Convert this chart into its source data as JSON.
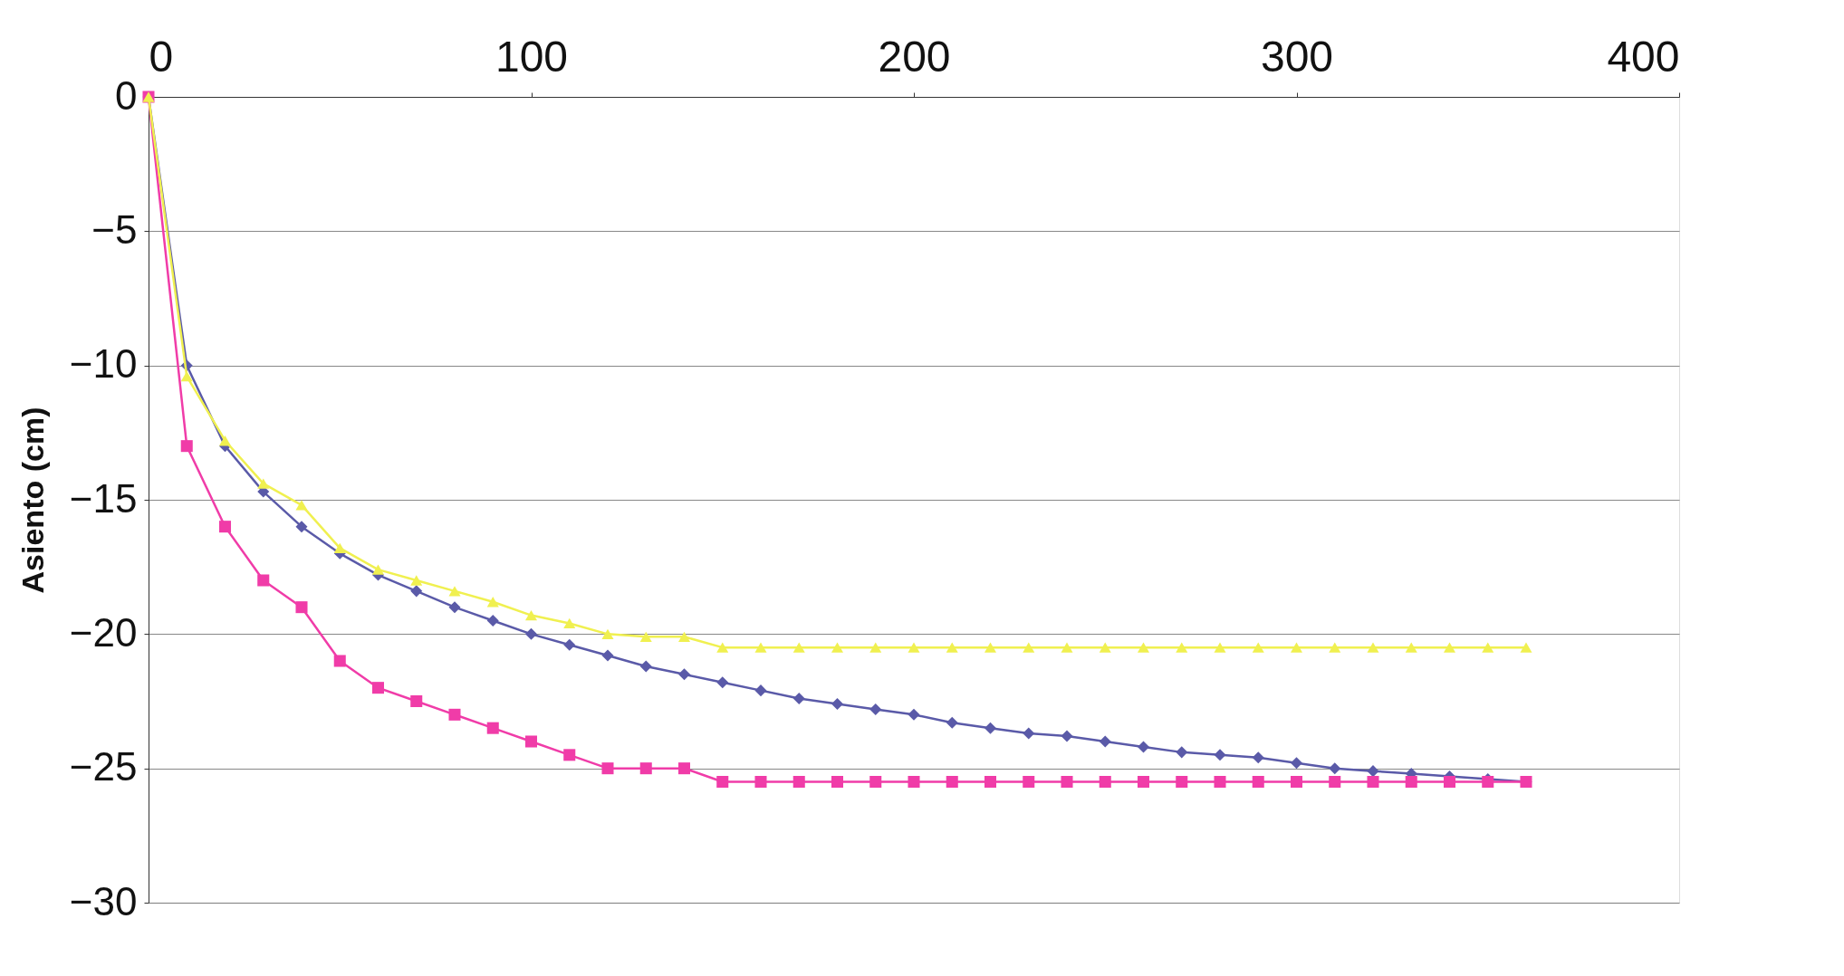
{
  "chart_data": {
    "type": "line",
    "ylabel": "Asiento (cm)",
    "x": [
      0,
      10,
      20,
      30,
      40,
      50,
      60,
      70,
      80,
      90,
      100,
      110,
      120,
      130,
      140,
      150,
      160,
      170,
      180,
      190,
      200,
      210,
      220,
      230,
      240,
      250,
      260,
      270,
      280,
      290,
      300,
      310,
      320,
      330,
      340,
      350,
      360
    ],
    "series": [
      {
        "color": "#5a5aa8",
        "marker": "diamond",
        "values": [
          0,
          -10,
          -13,
          -14.7,
          -16,
          -17,
          -17.8,
          -18.4,
          -19,
          -19.5,
          -20,
          -20.4,
          -20.8,
          -21.2,
          -21.5,
          -21.8,
          -22.1,
          -22.4,
          -22.6,
          -22.8,
          -23,
          -23.3,
          -23.5,
          -23.7,
          -23.8,
          -24,
          -24.2,
          -24.4,
          -24.5,
          -24.6,
          -24.8,
          -25,
          -25.1,
          -25.2,
          -25.3,
          -25.4,
          -25.5
        ]
      },
      {
        "color": "#f03ca8",
        "marker": "square",
        "values": [
          0,
          -13,
          -16,
          -18,
          -19,
          -21,
          -22,
          -22.5,
          -23,
          -23.5,
          -24,
          -24.5,
          -25,
          -25,
          -25,
          -25.5,
          -25.5,
          -25.5,
          -25.5,
          -25.5,
          -25.5,
          -25.5,
          -25.5,
          -25.5,
          -25.5,
          -25.5,
          -25.5,
          -25.5,
          -25.5,
          -25.5,
          -25.5,
          -25.5,
          -25.5,
          -25.5,
          -25.5,
          -25.5,
          -25.5
        ]
      },
      {
        "color": "#f0f050",
        "marker": "triangle",
        "values": [
          0,
          -10.4,
          -12.8,
          -14.4,
          -15.2,
          -16.8,
          -17.6,
          -18,
          -18.4,
          -18.8,
          -19.3,
          -19.6,
          -20,
          -20.1,
          -20.1,
          -20.5,
          -20.5,
          -20.5,
          -20.5,
          -20.5,
          -20.5,
          -20.5,
          -20.5,
          -20.5,
          -20.5,
          -20.5,
          -20.5,
          -20.5,
          -20.5,
          -20.5,
          -20.5,
          -20.5,
          -20.5,
          -20.5,
          -20.5,
          -20.5,
          -20.5
        ]
      }
    ],
    "xlim": [
      0,
      400
    ],
    "xticks": [
      0,
      100,
      200,
      300,
      400
    ],
    "ylim": [
      -30,
      0
    ],
    "yticks": [
      -30,
      -25,
      -20,
      -15,
      -10,
      -5,
      0
    ],
    "grid": "y"
  }
}
